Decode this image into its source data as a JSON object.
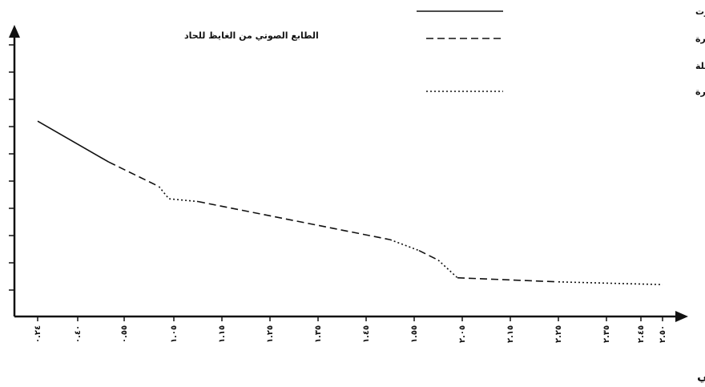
{
  "chart_data": {
    "type": "line",
    "title": "",
    "ylabel": "الطابع الصوتي من الغايظ للحاد",
    "xlabel": "الزمن بالثواني",
    "x_ticks": [
      {
        "x": 0.24,
        "label": "٠.٢٤"
      },
      {
        "x": 0.4,
        "label": "٠.٤٠"
      },
      {
        "x": 0.55,
        "label": "٠.٥٥"
      },
      {
        "x": 1.05,
        "label": "١.٠٥"
      },
      {
        "x": 1.15,
        "label": "١.١٥"
      },
      {
        "x": 1.25,
        "label": "١.٢٥"
      },
      {
        "x": 1.35,
        "label": "١.٣٥"
      },
      {
        "x": 1.45,
        "label": "١.٤٥"
      },
      {
        "x": 1.55,
        "label": "١.٥٥"
      },
      {
        "x": 2.05,
        "label": "٢.٠٥"
      },
      {
        "x": 2.15,
        "label": "٢.١٥"
      },
      {
        "x": 2.25,
        "label": "٢.٢٥"
      },
      {
        "x": 2.35,
        "label": "٢.٣٥"
      },
      {
        "x": 2.45,
        "label": "٢.٤٥"
      },
      {
        "x": 2.5,
        "label": "٢.٥٠"
      }
    ],
    "y_tick_count": 10,
    "y_range": [
      0,
      10
    ],
    "legend": {
      "placement": "top-right",
      "items": [
        {
          "style": "solid",
          "text": "- تدل على استمرار الصوت"
        },
        {
          "style": "dashed",
          "text": "- تدل على تقطع الصوت مع استمرارة"
        },
        {
          "style": "none",
          "text": "لفترة زمنية طويلة"
        },
        {
          "style": "dotted",
          "text": "- تدل على تقطع الصوت لفترة قصيرة"
        }
      ]
    },
    "segments": [
      {
        "style": "solid",
        "points": [
          [
            0.24,
            6.2
          ],
          [
            0.5,
            4.7
          ]
        ]
      },
      {
        "style": "dashed",
        "points": [
          [
            0.5,
            4.7
          ],
          [
            0.9,
            3.8
          ]
        ]
      },
      {
        "style": "dotted",
        "points": [
          [
            0.9,
            3.8
          ],
          [
            1.0,
            3.35
          ],
          [
            1.1,
            3.25
          ]
        ]
      },
      {
        "style": "dashed",
        "points": [
          [
            1.1,
            3.25
          ],
          [
            1.5,
            1.85
          ]
        ]
      },
      {
        "style": "dotted",
        "points": [
          [
            1.5,
            1.85
          ],
          [
            1.6,
            1.45
          ]
        ]
      },
      {
        "style": "dashed",
        "points": [
          [
            1.6,
            1.45
          ],
          [
            1.8,
            1.1
          ]
        ]
      },
      {
        "style": "dotted",
        "points": [
          [
            1.8,
            1.1
          ],
          [
            2.0,
            0.45
          ]
        ]
      },
      {
        "style": "dashed",
        "points": [
          [
            2.0,
            0.45
          ],
          [
            2.25,
            0.3
          ]
        ]
      },
      {
        "style": "dotted",
        "points": [
          [
            2.25,
            0.3
          ],
          [
            2.5,
            0.2
          ]
        ]
      }
    ],
    "grid": false
  },
  "colors": {
    "ink": "#111111",
    "background": "#ffffff"
  }
}
